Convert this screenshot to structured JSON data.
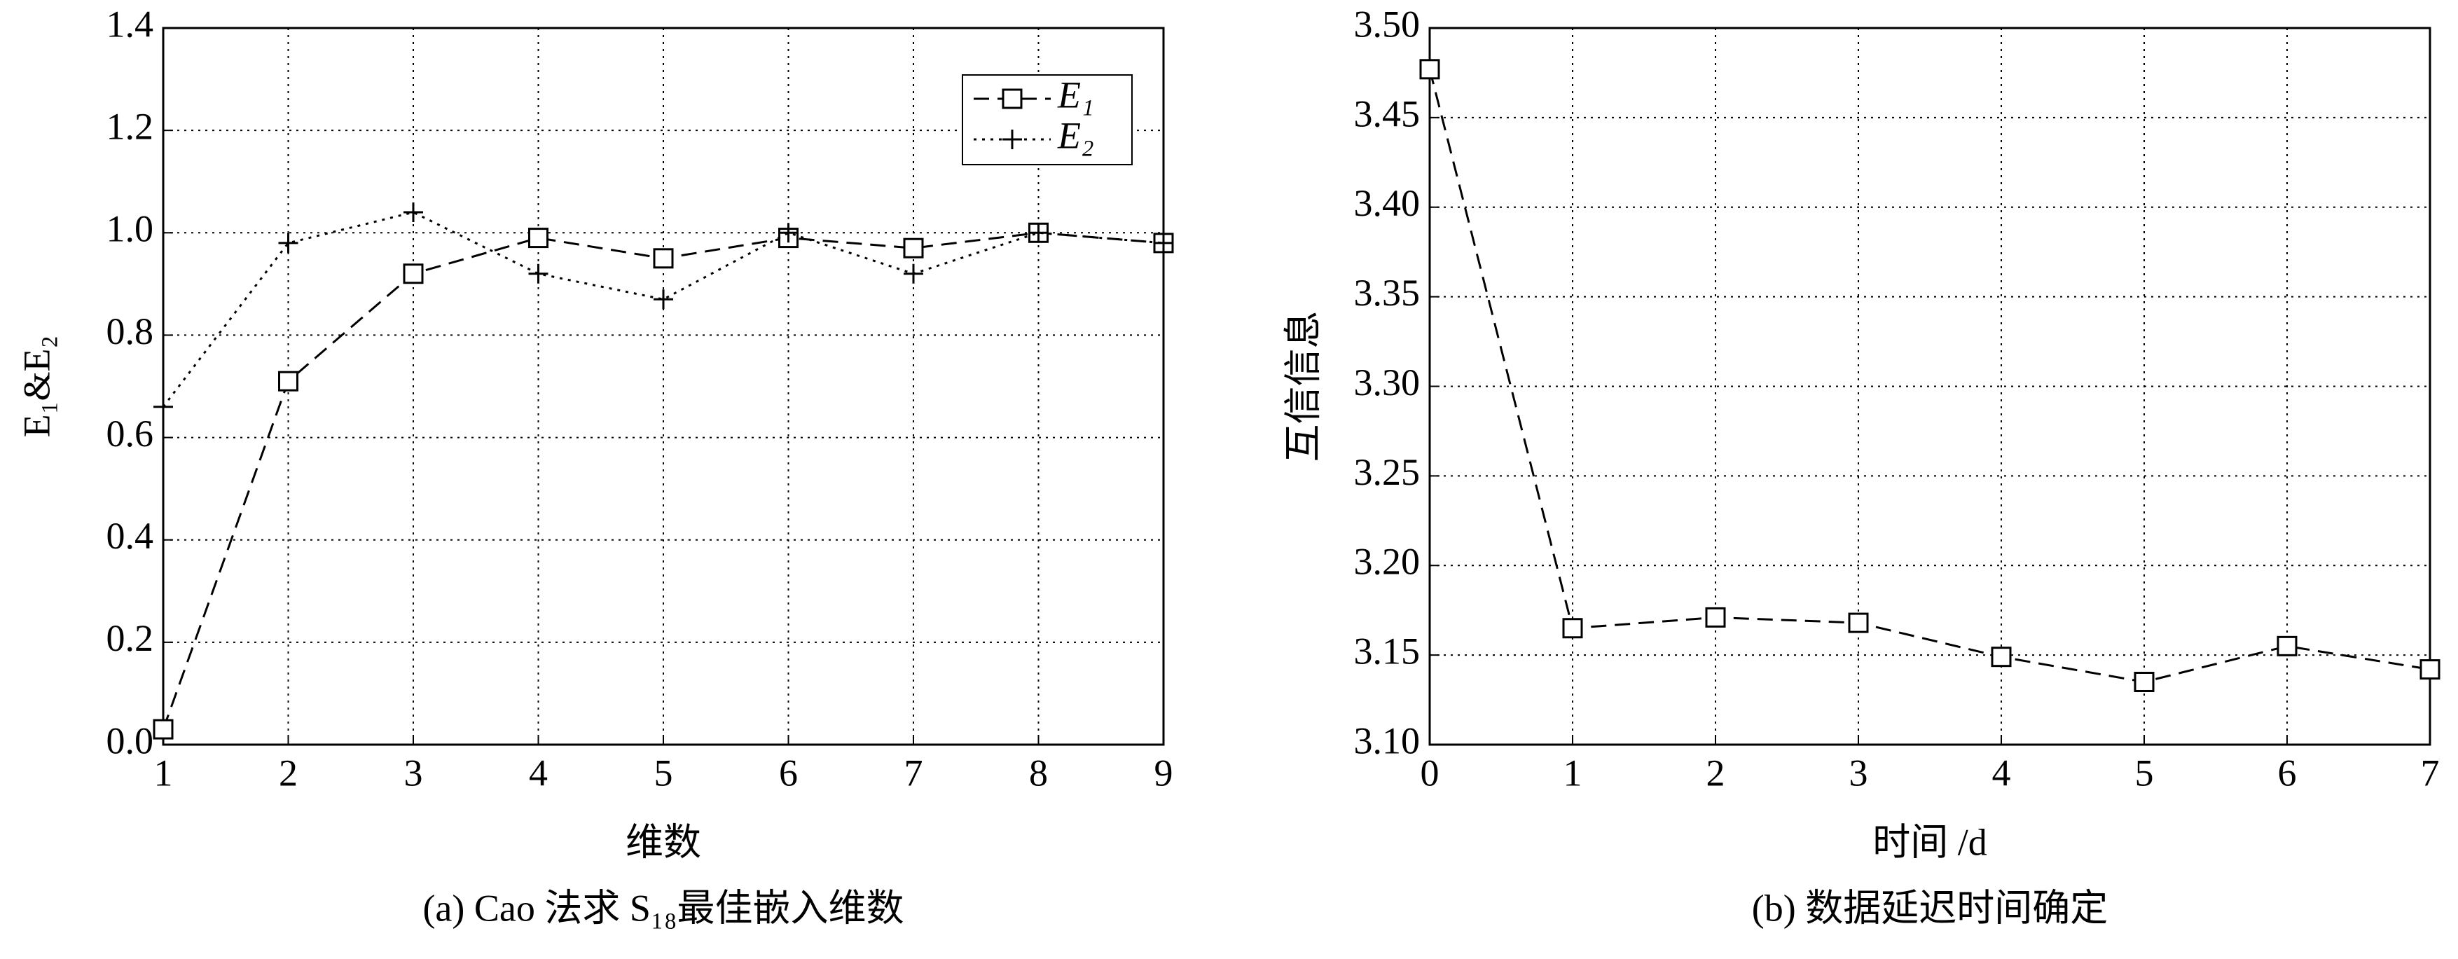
{
  "chart_data": [
    {
      "type": "line",
      "caption": "(a) Cao 法求 S₁₈最佳嵌入维数",
      "xlabel": "维数",
      "ylabel": "E₁&E₂",
      "x": [
        1,
        2,
        3,
        4,
        5,
        6,
        7,
        8,
        9
      ],
      "series": [
        {
          "name": "E₁",
          "color": "#000000",
          "linestyle": "dashed",
          "marker": "square",
          "values": [
            0.03,
            0.71,
            0.92,
            0.99,
            0.95,
            0.99,
            0.97,
            1.0,
            0.98
          ]
        },
        {
          "name": "E₂",
          "color": "#000000",
          "linestyle": "dotted",
          "marker": "plus",
          "values": [
            0.66,
            0.98,
            1.04,
            0.92,
            0.87,
            1.0,
            0.92,
            1.0,
            0.98
          ]
        }
      ],
      "xlim": [
        1,
        9
      ],
      "xticks": [
        1,
        2,
        3,
        4,
        5,
        6,
        7,
        8,
        9
      ],
      "ylim": [
        0,
        1.4
      ],
      "yticks": [
        {
          "value": 0,
          "label": "0.0"
        },
        0.2,
        0.4,
        0.6,
        0.8,
        {
          "value": 1,
          "label": "1.0"
        },
        1.2,
        1.4
      ],
      "grid": true,
      "legend": "upper right"
    },
    {
      "type": "line",
      "caption": "(b) 数据延迟时间确定",
      "xlabel": "时间 /d",
      "ylabel": "互信信息",
      "x": [
        0,
        1,
        2,
        3,
        4,
        5,
        6,
        7
      ],
      "series": [
        {
          "color": "#000000",
          "linestyle": "dashed",
          "marker": "square",
          "values": [
            3.477,
            3.165,
            3.171,
            3.168,
            3.149,
            3.135,
            3.155,
            3.142
          ]
        }
      ],
      "xlim": [
        0,
        7
      ],
      "xticks": [
        0,
        1,
        2,
        3,
        4,
        5,
        6,
        7
      ],
      "ylim": [
        3.1,
        3.5
      ],
      "yticks": [
        {
          "value": 3.1,
          "label": "3.10"
        },
        3.15,
        {
          "value": 3.2,
          "label": "3.20"
        },
        3.25,
        {
          "value": 3.3,
          "label": "3.30"
        },
        3.35,
        {
          "value": 3.4,
          "label": "3.40"
        },
        3.45,
        {
          "value": 3.5,
          "label": "3.50"
        }
      ],
      "grid": true
    }
  ]
}
